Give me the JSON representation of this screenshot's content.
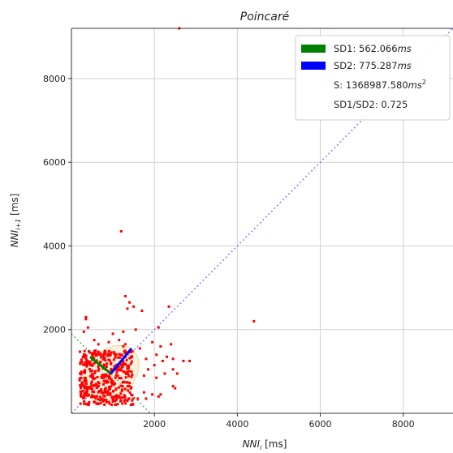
{
  "chart_data": {
    "type": "scatter",
    "title": "Poincaré",
    "xlabel": "NNI",
    "xlabel_sub": "i",
    "xlabel_unit": " [ms]",
    "ylabel": "NNI",
    "ylabel_sub": "i+1",
    "ylabel_unit": " [ms]",
    "xlim": [
      0,
      9200
    ],
    "ylim": [
      0,
      9200
    ],
    "xticks": [
      2000,
      4000,
      6000,
      8000
    ],
    "yticks": [
      2000,
      4000,
      6000,
      8000
    ],
    "grid": true,
    "legend_position": "top-right",
    "legend": [
      {
        "label": "SD1: 562.066",
        "unit": "ms",
        "color": "#008000",
        "swatch": true
      },
      {
        "label": "SD2: 775.287",
        "unit": "ms",
        "color": "#0000ff",
        "swatch": true
      },
      {
        "label": "S: 1368987.580",
        "unit": "ms",
        "unit_sup": "2",
        "color": "",
        "swatch": false
      },
      {
        "label": "SD1/SD2: 0.725",
        "unit": "",
        "color": "",
        "swatch": false
      }
    ],
    "identity_line": {
      "color": "#7777ff",
      "style": "dotted",
      "from": [
        0,
        0
      ],
      "to": [
        9200,
        9200
      ]
    },
    "sd1_line": {
      "color": "#008000",
      "from": [
        450,
        1350
      ],
      "to": [
        950,
        950
      ]
    },
    "sd2_line": {
      "color": "#0000ff",
      "from": [
        950,
        950
      ],
      "to": [
        1450,
        1550
      ]
    },
    "perpendicular_line": {
      "color": "#2ca02c",
      "style": "dotted",
      "from": [
        0,
        1900
      ],
      "to": [
        1900,
        0
      ]
    },
    "ellipse": {
      "center": [
        950,
        950
      ],
      "sd1": 562.066,
      "sd2": 775.287,
      "color": "#e8d89a"
    },
    "point_color": "#ff0000",
    "points_dense_cluster": {
      "x_range": [
        200,
        1500
      ],
      "y_range": [
        200,
        1500
      ],
      "count": 420
    },
    "points": [
      [
        2600,
        9200
      ],
      [
        1200,
        4350
      ],
      [
        4400,
        2200
      ],
      [
        1300,
        2800
      ],
      [
        1400,
        2650
      ],
      [
        1350,
        2500
      ],
      [
        1500,
        2550
      ],
      [
        1700,
        2450
      ],
      [
        2350,
        2550
      ],
      [
        2100,
        2050
      ],
      [
        1550,
        2000
      ],
      [
        1250,
        1950
      ],
      [
        1000,
        1900
      ],
      [
        350,
        2300
      ],
      [
        350,
        2250
      ],
      [
        400,
        2050
      ],
      [
        300,
        1950
      ],
      [
        550,
        1750
      ],
      [
        650,
        1650
      ],
      [
        900,
        1700
      ],
      [
        1150,
        1750
      ],
      [
        1250,
        1600
      ],
      [
        1300,
        1650
      ],
      [
        1650,
        1550
      ],
      [
        1950,
        1700
      ],
      [
        2150,
        1600
      ],
      [
        2400,
        1650
      ],
      [
        2450,
        1300
      ],
      [
        2300,
        1350
      ],
      [
        2700,
        1250
      ],
      [
        2850,
        1250
      ],
      [
        2450,
        1050
      ],
      [
        2550,
        950
      ],
      [
        2250,
        950
      ],
      [
        2050,
        850
      ],
      [
        1850,
        1050
      ],
      [
        1750,
        900
      ],
      [
        2450,
        650
      ],
      [
        2500,
        600
      ],
      [
        2150,
        450
      ],
      [
        2100,
        400
      ],
      [
        1950,
        450
      ],
      [
        1750,
        500
      ],
      [
        1800,
        350
      ],
      [
        1600,
        350
      ],
      [
        1350,
        300
      ],
      [
        2000,
        1150
      ],
      [
        2200,
        1250
      ],
      [
        2050,
        1400
      ],
      [
        1800,
        1300
      ]
    ]
  }
}
